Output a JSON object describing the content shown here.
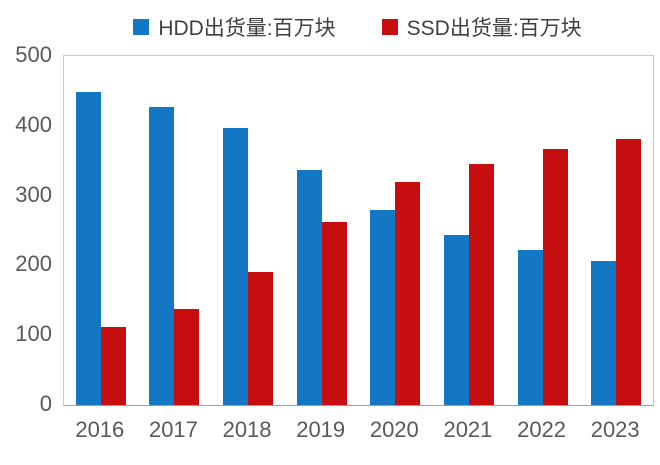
{
  "chart_data": {
    "type": "bar",
    "title": "",
    "categories": [
      "2016",
      "2017",
      "2018",
      "2019",
      "2020",
      "2021",
      "2022",
      "2023"
    ],
    "series": [
      {
        "name": "HDD出货量:百万块",
        "color": "#1377c4",
        "values": [
          449,
          427,
          397,
          336,
          279,
          244,
          222,
          207
        ]
      },
      {
        "name": "SSD出货量:百万块",
        "color": "#c60d10",
        "values": [
          112,
          137,
          190,
          262,
          320,
          346,
          367,
          381
        ]
      }
    ],
    "ylim": [
      0,
      500
    ],
    "yticks": [
      0,
      100,
      200,
      300,
      400,
      500
    ],
    "xlabel": "",
    "ylabel": "",
    "grid": false,
    "legend_position": "top"
  },
  "colors": {
    "hdd_blue": "#1377c4",
    "ssd_red": "#c60d10",
    "axis_text": "#595959",
    "legend_text": "#404040",
    "plot_border": "#c9c9c9"
  }
}
